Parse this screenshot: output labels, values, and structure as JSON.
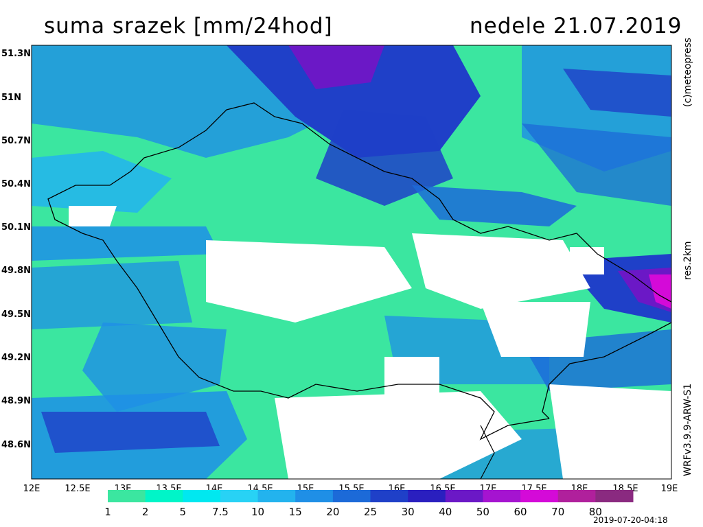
{
  "title_left": "suma srazek [mm/24hod]",
  "title_right": "nedele 21.07.2019",
  "side_labels": {
    "top": "(c)meteopress",
    "middle": "res.2km",
    "bottom": "WRFv3.9.9-ARW-S1"
  },
  "timestamp": "2019-07-20-04:18",
  "map": {
    "lon_range": [
      12,
      19
    ],
    "lat_range": [
      48.3,
      51.4
    ],
    "x_ticks": [
      "12E",
      "12.5E",
      "13E",
      "13.5E",
      "14E",
      "14.5E",
      "15E",
      "15.5E",
      "16E",
      "16.5E",
      "17E",
      "17.5E",
      "18E",
      "18.5E",
      "19E"
    ],
    "y_ticks": [
      "51.3N",
      "51N",
      "50.7N",
      "50.4N",
      "50.1N",
      "49.8N",
      "49.5N",
      "49.2N",
      "48.9N",
      "48.6N"
    ]
  },
  "legend": {
    "labels": [
      "1",
      "2",
      "5",
      "7.5",
      "10",
      "15",
      "20",
      "25",
      "30",
      "40",
      "50",
      "60",
      "70",
      "80"
    ],
    "colors": [
      "#3be6a0",
      "#00f5c8",
      "#00e8f0",
      "#28d2f5",
      "#23b3ee",
      "#1f8fe6",
      "#1c6ad8",
      "#1f40c8",
      "#2a1fbf",
      "#6b18c6",
      "#a514d0",
      "#d40ad8",
      "#b0209c",
      "#8a2a80"
    ]
  }
}
